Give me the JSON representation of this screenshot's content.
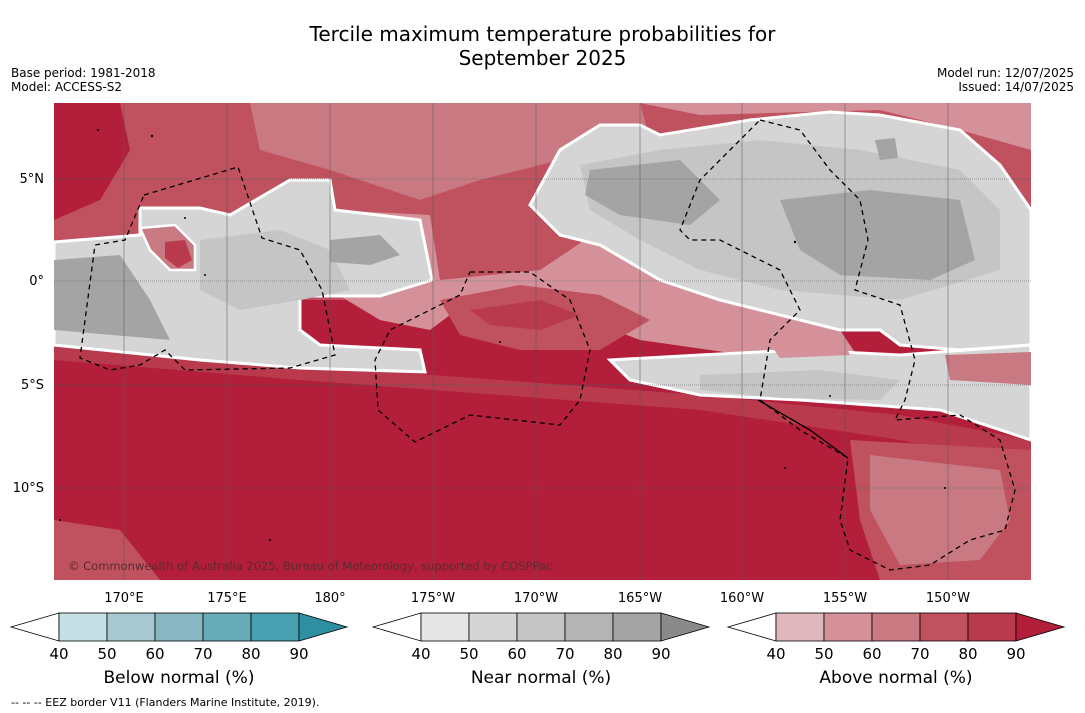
{
  "header": {
    "title_line1": "Tercile maximum temperature probabilities for",
    "title_line2": "September 2025",
    "base_period": "Base period: 1981-2018",
    "model": "Model: ACCESS-S2",
    "model_run": "Model run: 12/07/2025",
    "issued": "Issued: 14/07/2025"
  },
  "map": {
    "lat_ticks": [
      "5°N",
      "0°",
      "5°S",
      "10°S"
    ],
    "lon_ticks": [
      "170°E",
      "175°E",
      "180°",
      "175°W",
      "170°W",
      "165°W",
      "160°W",
      "155°W",
      "150°W"
    ],
    "copyright": "© Commonwealth of Australia 2025, Bureau of Meteorology, supported by COSPPac"
  },
  "legends": [
    {
      "label": "Below normal (%)",
      "ticks": [
        "40",
        "50",
        "60",
        "70",
        "80",
        "90"
      ],
      "colors": [
        "#ffffff",
        "#c6e0e6",
        "#a6c8ce",
        "#89b7c2",
        "#68abb8",
        "#479faf",
        "#2e8fa3"
      ]
    },
    {
      "label": "Near normal (%)",
      "ticks": [
        "40",
        "50",
        "60",
        "70",
        "80",
        "90"
      ],
      "colors": [
        "#ffffff",
        "#e6e6e6",
        "#d5d5d5",
        "#c5c5c5",
        "#b4b4b4",
        "#a4a4a4",
        "#8a8a8a"
      ]
    },
    {
      "label": "Above normal (%)",
      "ticks": [
        "40",
        "50",
        "60",
        "70",
        "80",
        "90"
      ],
      "colors": [
        "#ffffff",
        "#e0b7bc",
        "#d59199",
        "#c97982",
        "#c0515f",
        "#b83a4c",
        "#b31e3b"
      ]
    }
  ],
  "footer": "--  --  -- EEZ border V11 (Flanders Marine Institute, 2019)."
}
